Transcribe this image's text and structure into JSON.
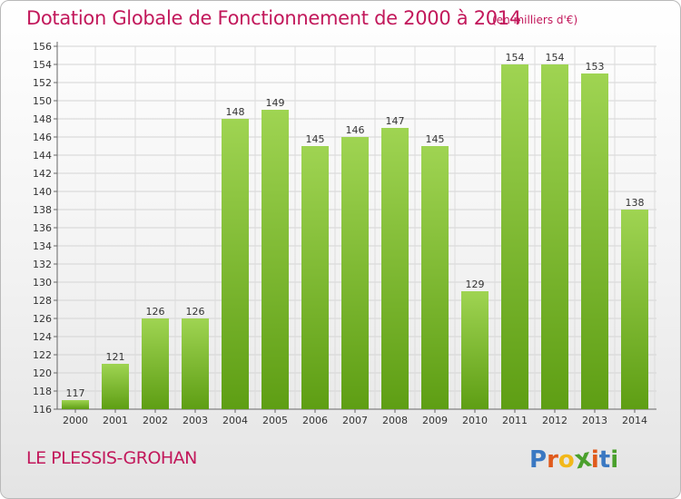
{
  "header": {
    "title": "Dotation Globale de Fonctionnement de 2000 à 2014",
    "subtitle": "(en milliers d'€)"
  },
  "footer": {
    "city": "LE PLESSIS-GROHAN",
    "logo_letters": [
      "P",
      "r",
      "o",
      "x",
      "i",
      "t",
      "i"
    ],
    "logo_colors": [
      "#3a78c2",
      "#e05a1c",
      "#f2b81a",
      "#4aa02c",
      "#e05a1c",
      "#3a78c2",
      "#4aa02c"
    ]
  },
  "chart_data": {
    "type": "bar",
    "categories": [
      "2000",
      "2001",
      "2002",
      "2003",
      "2004",
      "2005",
      "2006",
      "2007",
      "2008",
      "2009",
      "2010",
      "2011",
      "2012",
      "2013",
      "2014"
    ],
    "values": [
      117,
      121,
      126,
      126,
      148,
      149,
      145,
      146,
      147,
      145,
      129,
      154,
      154,
      153,
      138
    ],
    "ylim": [
      116,
      156
    ],
    "yticks": [
      116,
      118,
      120,
      122,
      124,
      126,
      128,
      130,
      132,
      134,
      136,
      138,
      140,
      142,
      144,
      146,
      148,
      150,
      152,
      154,
      156
    ],
    "grid": true,
    "bar_color": "#8cc63f",
    "bar_color_dark": "#5e9e14"
  }
}
